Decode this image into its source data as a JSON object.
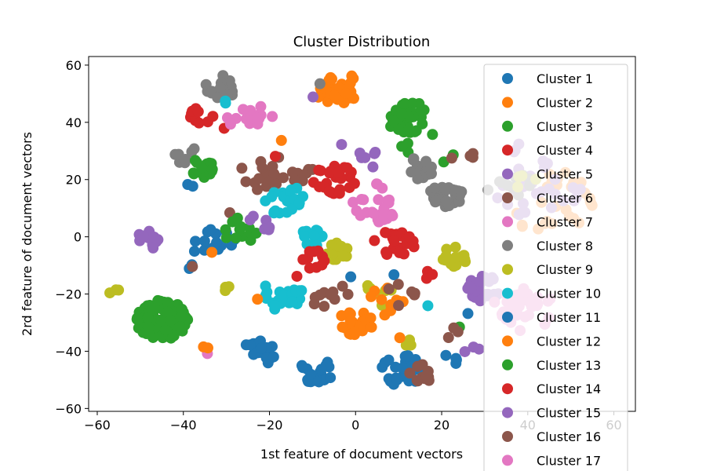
{
  "chart_data": {
    "type": "scatter",
    "title": "Cluster Distribution",
    "xlabel": "1st feature of document vectors",
    "ylabel": "2rd feature of document vectors",
    "xlim": [
      -62,
      65
    ],
    "ylim": [
      -61,
      63
    ],
    "xticks": [
      -60,
      -40,
      -20,
      0,
      20,
      40,
      60
    ],
    "yticks": [
      -60,
      -40,
      -20,
      0,
      20,
      40,
      60
    ],
    "xtick_labels": [
      "−60",
      "−40",
      "−20",
      "0",
      "20",
      "40",
      "60"
    ],
    "ytick_labels": [
      "−60",
      "−40",
      "−20",
      "0",
      "20",
      "40",
      "60"
    ],
    "grid": false,
    "legend_position": "top-right",
    "series": [
      {
        "name": "Cluster 1",
        "color": "#1f77b4",
        "groups": [
          {
            "cx": -32,
            "cy": -1,
            "r": 4,
            "n": 12
          },
          {
            "cx": -36,
            "cy": -3,
            "r": 3,
            "n": 6
          },
          {
            "cx": -38.5,
            "cy": 18,
            "r": 1,
            "n": 2
          },
          {
            "cx": -38.5,
            "cy": -10,
            "r": 1,
            "n": 2
          }
        ]
      },
      {
        "name": "Cluster 2",
        "color": "#ff7f0e",
        "groups": [
          {
            "cx": -4,
            "cy": 52,
            "r": 5,
            "n": 35
          },
          {
            "cx": -8,
            "cy": 48,
            "r": 1,
            "n": 1
          },
          {
            "cx": 45,
            "cy": 12,
            "r": 10,
            "n": 28
          },
          {
            "cx": -17,
            "cy": 34,
            "r": 1,
            "n": 1
          }
        ]
      },
      {
        "name": "Cluster 3",
        "color": "#2ca02c",
        "groups": [
          {
            "cx": 12,
            "cy": 42,
            "r": 5,
            "n": 40
          },
          {
            "cx": 12,
            "cy": 31,
            "r": 1.5,
            "n": 3
          },
          {
            "cx": 17,
            "cy": 36,
            "r": 1,
            "n": 1
          }
        ]
      },
      {
        "name": "Cluster 4",
        "color": "#d62728",
        "groups": [
          {
            "cx": -36,
            "cy": 43,
            "r": 3,
            "n": 10
          },
          {
            "cx": -30,
            "cy": 37,
            "r": 1,
            "n": 1
          }
        ]
      },
      {
        "name": "Cluster 5",
        "color": "#9467bd",
        "groups": [
          {
            "cx": 42,
            "cy": 20,
            "r": 12,
            "n": 30
          },
          {
            "cx": -4,
            "cy": 32,
            "r": 1,
            "n": 1
          },
          {
            "cx": -10,
            "cy": 48,
            "r": 1,
            "n": 1
          }
        ]
      },
      {
        "name": "Cluster 6",
        "color": "#8c564b",
        "groups": [
          {
            "cx": -22,
            "cy": 23,
            "r": 6,
            "n": 20
          },
          {
            "cx": -12,
            "cy": 22,
            "r": 3,
            "n": 8
          },
          {
            "cx": 27,
            "cy": 30,
            "r": 2,
            "n": 3
          },
          {
            "cx": -30,
            "cy": 8,
            "r": 1,
            "n": 1
          }
        ]
      },
      {
        "name": "Cluster 7",
        "color": "#e377c2",
        "groups": [
          {
            "cx": -23,
            "cy": 42,
            "r": 4,
            "n": 12
          },
          {
            "cx": 5,
            "cy": 12,
            "r": 6,
            "n": 25
          },
          {
            "cx": 40,
            "cy": -26,
            "r": 7,
            "n": 22
          },
          {
            "cx": -34,
            "cy": -41,
            "r": 1,
            "n": 1
          }
        ]
      },
      {
        "name": "Cluster 8",
        "color": "#7f7f7f",
        "groups": [
          {
            "cx": -31,
            "cy": 53,
            "r": 4,
            "n": 20
          },
          {
            "cx": 21,
            "cy": 15,
            "r": 4,
            "n": 30
          },
          {
            "cx": 14,
            "cy": 24,
            "r": 4,
            "n": 14
          },
          {
            "cx": -39,
            "cy": 28,
            "r": 3,
            "n": 7
          },
          {
            "cx": 36,
            "cy": 18,
            "r": 6,
            "n": 10
          },
          {
            "cx": -9,
            "cy": 54,
            "r": 1,
            "n": 1
          }
        ]
      },
      {
        "name": "Cluster 9",
        "color": "#bcbd22",
        "groups": [
          {
            "cx": -4,
            "cy": -5,
            "r": 3,
            "n": 16
          },
          {
            "cx": 23,
            "cy": -7,
            "r": 3,
            "n": 16
          },
          {
            "cx": 5,
            "cy": -20,
            "r": 4,
            "n": 8
          },
          {
            "cx": -56,
            "cy": -19,
            "r": 1.5,
            "n": 3
          },
          {
            "cx": -30,
            "cy": -19,
            "r": 1.5,
            "n": 3
          },
          {
            "cx": 12,
            "cy": -37,
            "r": 1.5,
            "n": 3
          },
          {
            "cx": 40,
            "cy": 20,
            "r": 4,
            "n": 4
          }
        ]
      },
      {
        "name": "Cluster 10",
        "color": "#17becf",
        "groups": [
          {
            "cx": -17,
            "cy": 13,
            "r": 5,
            "n": 22
          },
          {
            "cx": -10,
            "cy": 0,
            "r": 3,
            "n": 12
          },
          {
            "cx": -17,
            "cy": -20,
            "r": 5,
            "n": 25
          },
          {
            "cx": -30,
            "cy": 47,
            "r": 1,
            "n": 2
          },
          {
            "cx": 17,
            "cy": -25,
            "r": 1,
            "n": 1
          }
        ]
      },
      {
        "name": "Cluster 11",
        "color": "#1f77b4",
        "groups": [
          {
            "cx": -22,
            "cy": -40,
            "r": 4,
            "n": 18
          },
          {
            "cx": -9,
            "cy": -47,
            "r": 4,
            "n": 20
          },
          {
            "cx": 11,
            "cy": -47,
            "r": 5,
            "n": 24
          },
          {
            "cx": 22,
            "cy": -43,
            "r": 2,
            "n": 4
          },
          {
            "cx": -1,
            "cy": -14,
            "r": 1,
            "n": 1
          },
          {
            "cx": 8,
            "cy": -13,
            "r": 1,
            "n": 1
          },
          {
            "cx": 26,
            "cy": -26,
            "r": 1,
            "n": 1
          }
        ]
      },
      {
        "name": "Cluster 12",
        "color": "#ff7f0e",
        "groups": [
          {
            "cx": 0,
            "cy": -30,
            "r": 4,
            "n": 22
          },
          {
            "cx": 7,
            "cy": -22,
            "r": 5,
            "n": 10
          },
          {
            "cx": -35,
            "cy": -39,
            "r": 1,
            "n": 2
          },
          {
            "cx": -33,
            "cy": -6,
            "r": 1,
            "n": 1
          },
          {
            "cx": -23,
            "cy": -21,
            "r": 1,
            "n": 1
          },
          {
            "cx": 10,
            "cy": -35,
            "r": 1,
            "n": 1
          }
        ]
      },
      {
        "name": "Cluster 13",
        "color": "#2ca02c",
        "groups": [
          {
            "cx": -45,
            "cy": -29,
            "r": 6,
            "n": 110
          },
          {
            "cx": -36,
            "cy": 24,
            "r": 3,
            "n": 14
          },
          {
            "cx": -27,
            "cy": 2,
            "r": 4,
            "n": 12
          },
          {
            "cx": 21,
            "cy": 28,
            "r": 2,
            "n": 2
          },
          {
            "cx": 24,
            "cy": -32,
            "r": 1,
            "n": 1
          }
        ]
      },
      {
        "name": "Cluster 14",
        "color": "#d62728",
        "groups": [
          {
            "cx": -5,
            "cy": 20,
            "r": 5,
            "n": 30
          },
          {
            "cx": 9,
            "cy": -2,
            "r": 5,
            "n": 22
          },
          {
            "cx": -10,
            "cy": -8,
            "r": 3,
            "n": 10
          },
          {
            "cx": 17,
            "cy": -13,
            "r": 1.5,
            "n": 3
          },
          {
            "cx": -18,
            "cy": 29,
            "r": 1,
            "n": 1
          },
          {
            "cx": -14,
            "cy": -13,
            "r": 1,
            "n": 1
          }
        ]
      },
      {
        "name": "Cluster 15",
        "color": "#9467bd",
        "groups": [
          {
            "cx": -48,
            "cy": -1,
            "r": 3,
            "n": 12
          },
          {
            "cx": 30,
            "cy": -18,
            "r": 4,
            "n": 30
          },
          {
            "cx": 3,
            "cy": 27,
            "r": 3,
            "n": 6
          },
          {
            "cx": -22,
            "cy": 5,
            "r": 3,
            "n": 6
          },
          {
            "cx": 27,
            "cy": -39,
            "r": 2,
            "n": 3
          }
        ]
      },
      {
        "name": "Cluster 16",
        "color": "#8c564b",
        "groups": [
          {
            "cx": 15,
            "cy": -48,
            "r": 3,
            "n": 12
          },
          {
            "cx": -6,
            "cy": -20,
            "r": 5,
            "n": 10
          },
          {
            "cx": 10,
            "cy": -20,
            "r": 4,
            "n": 6
          },
          {
            "cx": 22,
            "cy": -33,
            "r": 2,
            "n": 3
          },
          {
            "cx": -38.5,
            "cy": -11,
            "r": 1,
            "n": 1
          },
          {
            "cx": 22,
            "cy": 28,
            "r": 1,
            "n": 1
          }
        ]
      },
      {
        "name": "Cluster 17",
        "color": "#e377c2",
        "groups": [
          {
            "cx": 37,
            "cy": -22,
            "r": 6,
            "n": 14
          },
          {
            "cx": -29,
            "cy": 40,
            "r": 2,
            "n": 3
          }
        ]
      }
    ]
  }
}
